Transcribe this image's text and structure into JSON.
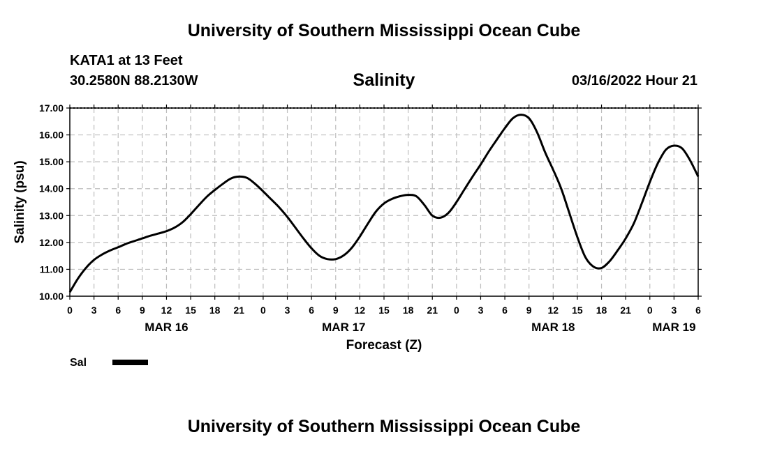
{
  "header": {
    "title": "University of Southern Mississippi Ocean Cube",
    "station": "KATA1 at 13 Feet",
    "coordinates": "30.2580N  88.2130W",
    "datetime": "03/16/2022 Hour 21"
  },
  "footer": {
    "title": "University of Southern Mississippi Ocean Cube"
  },
  "chart_data": {
    "type": "line",
    "title": "Salinity",
    "xlabel": "Forecast (Z)",
    "ylabel": "Salinity (psu)",
    "ylim": [
      10.0,
      17.0
    ],
    "xlim": [
      0,
      78
    ],
    "x_unit": "hours since MAR 16 00Z",
    "grid": true,
    "y_ticks": [
      "10.00",
      "11.00",
      "12.00",
      "13.00",
      "14.00",
      "15.00",
      "16.00",
      "17.00"
    ],
    "x_ticks": [
      "0",
      "3",
      "6",
      "9",
      "12",
      "15",
      "18",
      "21",
      "0",
      "3",
      "6",
      "9",
      "12",
      "15",
      "18",
      "21",
      "0",
      "3",
      "6",
      "9",
      "12",
      "15",
      "18",
      "21",
      "0",
      "3",
      "6"
    ],
    "date_labels": [
      {
        "label": "MAR 16",
        "hour": 12
      },
      {
        "label": "MAR 17",
        "hour": 34
      },
      {
        "label": "MAR 18",
        "hour": 60
      },
      {
        "label": "MAR 19",
        "hour": 75
      }
    ],
    "legend": {
      "position": "bottom-left",
      "entries": [
        "Sal"
      ]
    },
    "series": [
      {
        "name": "Sal",
        "color": "#000000",
        "x": [
          0,
          1,
          2,
          3,
          4,
          5,
          6,
          7,
          8,
          9,
          10,
          11,
          12,
          13,
          14,
          15,
          16,
          17,
          18,
          19,
          20,
          21,
          22,
          23,
          24,
          25,
          26,
          27,
          28,
          29,
          30,
          31,
          32,
          33,
          34,
          35,
          36,
          37,
          38,
          39,
          40,
          41,
          42,
          43,
          44,
          45,
          46,
          47,
          48,
          49,
          50,
          51,
          52,
          53,
          54,
          55,
          56,
          57,
          58,
          59,
          60,
          61,
          62,
          63,
          64,
          65,
          66,
          67,
          68,
          69,
          70,
          71,
          72,
          73,
          74,
          75,
          76,
          77,
          78
        ],
        "values": [
          10.15,
          10.65,
          11.05,
          11.35,
          11.55,
          11.7,
          11.82,
          11.95,
          12.05,
          12.15,
          12.25,
          12.33,
          12.42,
          12.55,
          12.75,
          13.05,
          13.38,
          13.7,
          13.95,
          14.18,
          14.38,
          14.45,
          14.4,
          14.18,
          13.9,
          13.6,
          13.3,
          12.95,
          12.55,
          12.15,
          11.78,
          11.5,
          11.38,
          11.38,
          11.52,
          11.8,
          12.22,
          12.7,
          13.15,
          13.45,
          13.62,
          13.72,
          13.77,
          13.72,
          13.4,
          13.0,
          12.92,
          13.1,
          13.5,
          13.98,
          14.45,
          14.9,
          15.38,
          15.82,
          16.25,
          16.62,
          16.75,
          16.62,
          16.1,
          15.35,
          14.7,
          14.0,
          13.1,
          12.2,
          11.45,
          11.1,
          11.05,
          11.3,
          11.7,
          12.15,
          12.7,
          13.45,
          14.25,
          14.95,
          15.45,
          15.6,
          15.5,
          15.05,
          14.45
        ]
      }
    ]
  }
}
